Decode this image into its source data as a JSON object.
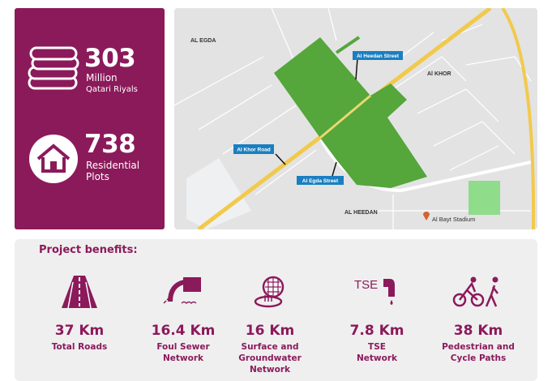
{
  "stats": {
    "budget": {
      "value": "303",
      "line1": "Million",
      "line2": "Qatari Riyals",
      "icon": "coins-icon"
    },
    "plots": {
      "value": "738",
      "line1": "Residential",
      "line2": "Plots",
      "icon": "house-icon"
    }
  },
  "map": {
    "areas": [
      "AL EGDA",
      "Al KHOR",
      "AL HEEDAN"
    ],
    "streets": [
      "Al Heedan Street",
      "Al Khor Road",
      "Al Egda Street"
    ],
    "landmark": "Al Bayt Stadium",
    "colors": {
      "project": "#55a63b",
      "street_label": "#1a7fc1",
      "highway": "#f2c94c"
    }
  },
  "benefits": {
    "title": "Project benefits:",
    "items": [
      {
        "value": "37 Km",
        "label": [
          "Total Roads"
        ],
        "icon": "road-icon"
      },
      {
        "value": "16.4 Km",
        "label": [
          "Foul Sewer",
          "Network"
        ],
        "icon": "sewer-pipe-icon"
      },
      {
        "value": "16 Km",
        "label": [
          "Surface and",
          "Groundwater",
          "Network"
        ],
        "icon": "drain-icon"
      },
      {
        "value": "7.8 Km",
        "label": [
          "TSE",
          "Network"
        ],
        "icon": "tse-tap-icon",
        "icon_text": "TSE"
      },
      {
        "value": "38 Km",
        "label": [
          "Pedestrian and",
          "Cycle Paths"
        ],
        "icon": "bicycle-pedestrian-icon"
      }
    ]
  },
  "accent": "#8b1a5b"
}
